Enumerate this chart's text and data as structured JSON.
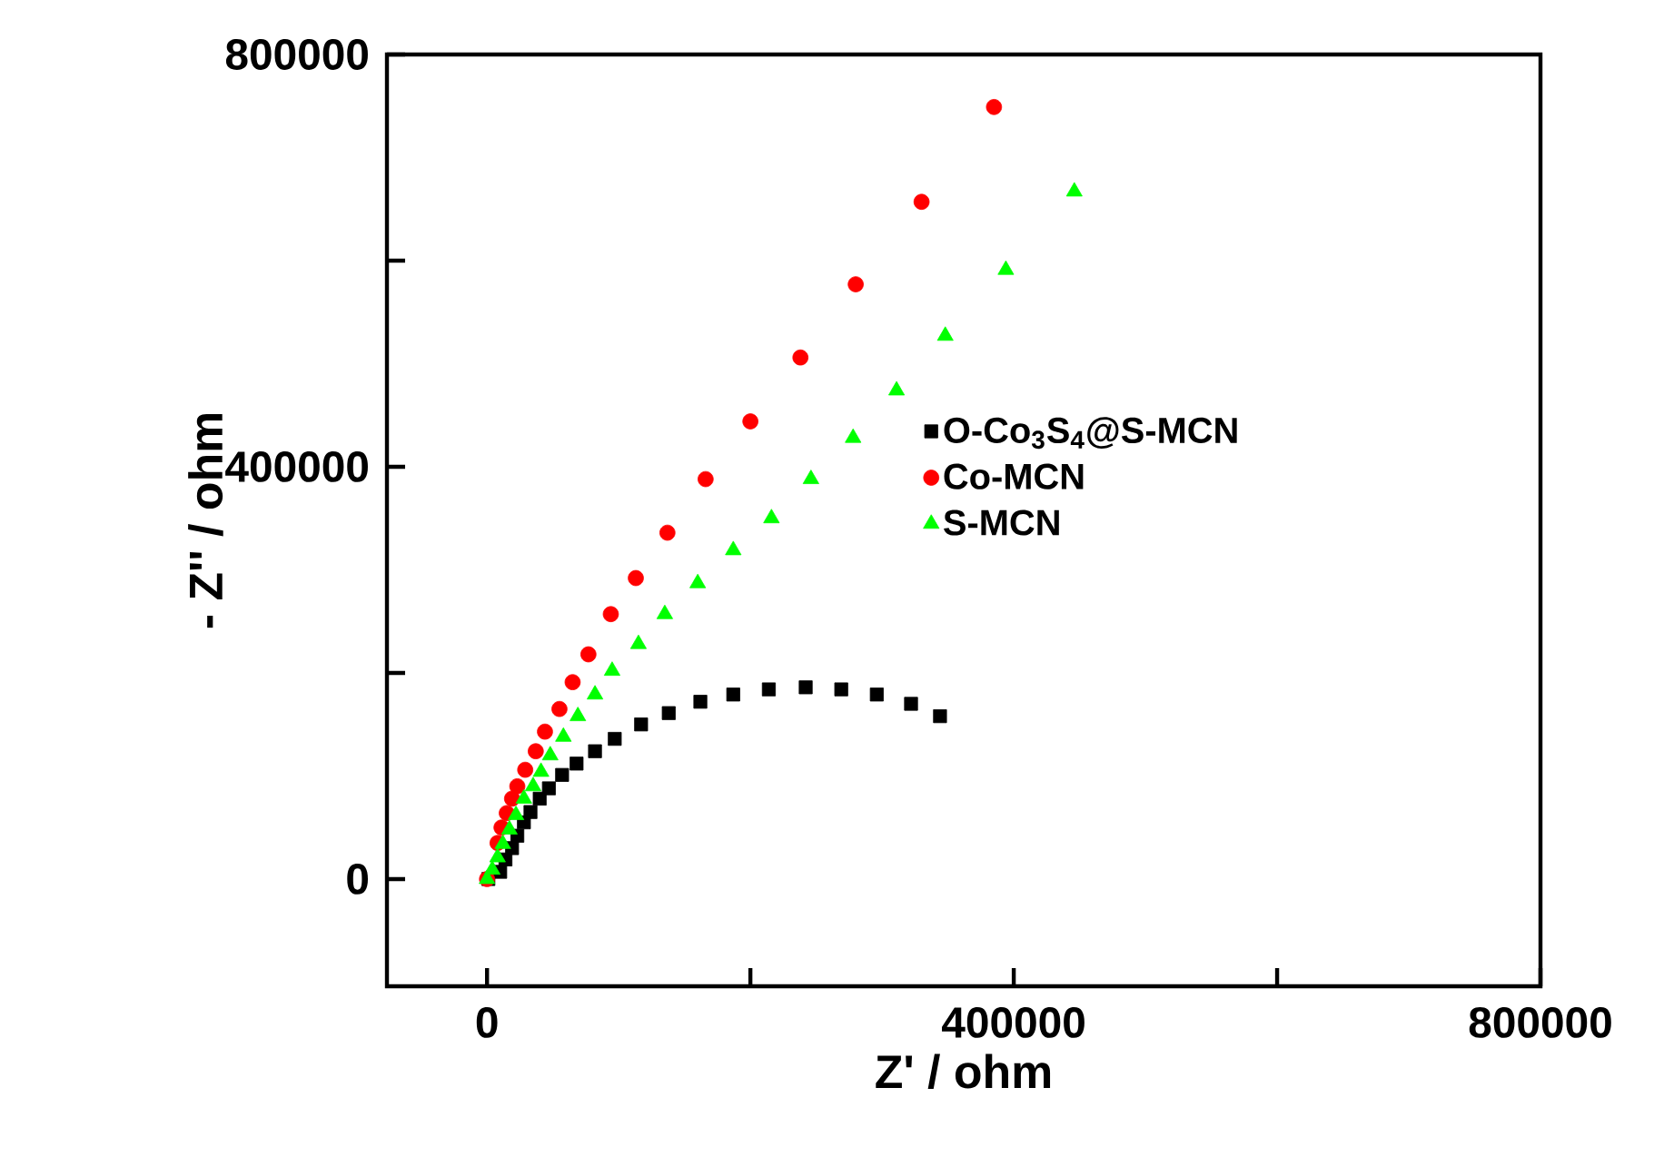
{
  "chart_data": {
    "type": "scatter",
    "xlabel": "Z' / ohm",
    "ylabel": "- Z'' / ohm",
    "xlim": [
      -76000,
      800000
    ],
    "ylim": [
      -104000,
      800000
    ],
    "xticks": [
      0,
      {
        "value": 200000,
        "label": null
      },
      400000,
      {
        "value": 600000,
        "label": null
      },
      800000
    ],
    "yticks": [
      0,
      {
        "value": 200000,
        "label": null
      },
      400000,
      {
        "value": 600000,
        "label": null
      },
      800000
    ],
    "legend": "right",
    "series": [
      {
        "name": "O-Co$_{3}$S$_{4}$@S-MCN",
        "color": "#000000",
        "marker": "square",
        "x": [
          344000,
          322000,
          296000,
          269000,
          242000,
          214000,
          187000,
          162000,
          138000,
          117000,
          97000,
          82000,
          68000,
          57000,
          47000,
          40000,
          33000,
          28000,
          23000,
          19000,
          14000,
          10000,
          1000
        ],
        "values": [
          158000,
          170000,
          179000,
          184000,
          186000,
          184000,
          179000,
          172000,
          161000,
          150000,
          136000,
          124000,
          112000,
          101000,
          88000,
          78000,
          65000,
          55000,
          42000,
          30000,
          19000,
          7000,
          0
        ]
      },
      {
        "name": "Co-MCN",
        "color": "#ff0000",
        "marker": "circle",
        "x": [
          385000,
          330000,
          280000,
          238000,
          200000,
          166000,
          137000,
          113000,
          94000,
          77000,
          65000,
          55000,
          44000,
          37000,
          29000,
          23000,
          19000,
          15000,
          11000,
          8000,
          5500,
          3000,
          0
        ],
        "values": [
          749000,
          657000,
          577000,
          506000,
          444000,
          388000,
          336000,
          292000,
          257000,
          218000,
          191000,
          165000,
          143000,
          124000,
          106000,
          90000,
          78000,
          64000,
          50000,
          35000,
          null,
          null,
          0
        ]
      },
      {
        "name": "S-MCN",
        "color": "#00ff00",
        "marker": "triangle",
        "x": [
          446000,
          394000,
          348000,
          311000,
          278000,
          246000,
          216000,
          187000,
          160000,
          135000,
          115000,
          95000,
          82000,
          69000,
          58000,
          48000,
          41000,
          35000,
          28000,
          22000,
          17000,
          12000,
          8000,
          4000,
          0
        ],
        "values": [
          667000,
          591000,
          527000,
          474000,
          428000,
          388000,
          350000,
          319000,
          287000,
          257000,
          228000,
          202000,
          179000,
          158000,
          138000,
          120000,
          104000,
          90000,
          78000,
          62000,
          48000,
          34000,
          21000,
          9000,
          0
        ]
      }
    ]
  }
}
